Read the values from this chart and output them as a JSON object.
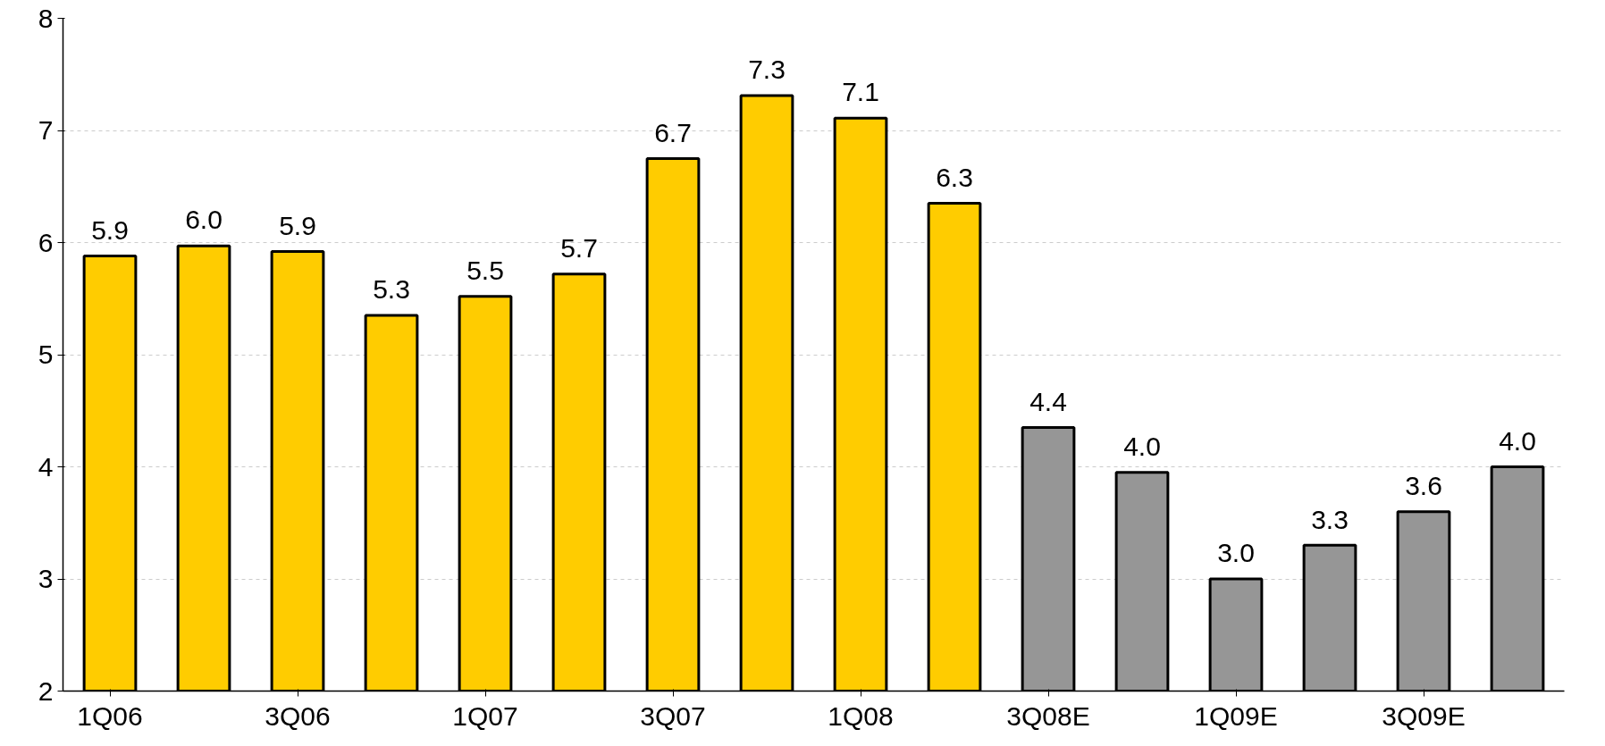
{
  "chart_data": {
    "type": "bar",
    "categories": [
      "1Q06",
      null,
      "3Q06",
      null,
      "1Q07",
      null,
      "3Q07",
      null,
      "1Q08",
      null,
      "3Q08E",
      null,
      "1Q09E",
      null,
      "3Q09E",
      null
    ],
    "values": [
      5.88,
      5.97,
      5.92,
      5.35,
      5.52,
      5.72,
      6.75,
      7.31,
      7.11,
      6.35,
      4.35,
      3.95,
      3.0,
      3.3,
      3.6,
      4.0
    ],
    "value_labels": [
      "5.9",
      "6.0",
      "5.9",
      "5.3",
      "5.5",
      "5.7",
      "6.7",
      "7.3",
      "7.1",
      "6.3",
      "4.4",
      "4.0",
      "3.0",
      "3.3",
      "3.6",
      "4.0"
    ],
    "colors": [
      "#ffcc00",
      "#ffcc00",
      "#ffcc00",
      "#ffcc00",
      "#ffcc00",
      "#ffcc00",
      "#ffcc00",
      "#ffcc00",
      "#ffcc00",
      "#ffcc00",
      "#969696",
      "#969696",
      "#969696",
      "#969696",
      "#969696",
      "#969696"
    ],
    "ylim": [
      2,
      8
    ],
    "yticks": [
      2,
      3,
      4,
      5,
      6,
      7,
      8
    ],
    "grid": "y"
  }
}
